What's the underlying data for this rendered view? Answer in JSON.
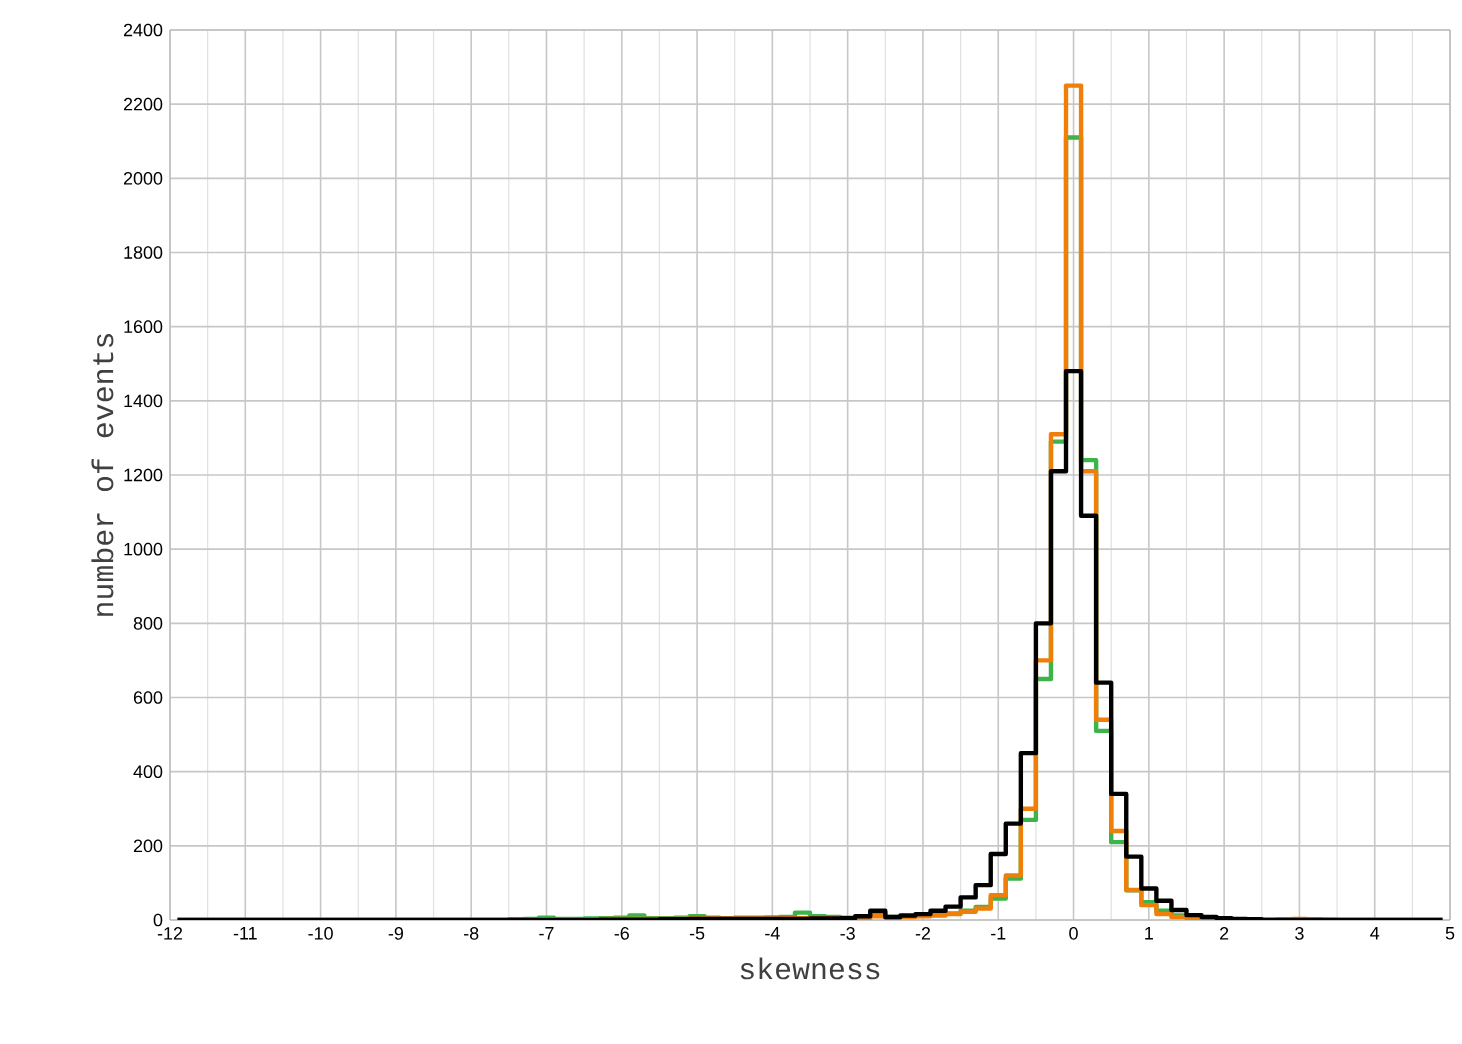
{
  "chart_data": {
    "type": "histogram",
    "xlabel": "skewness",
    "ylabel": "number of events",
    "bins": [
      -11.9,
      -11.7,
      -11.5,
      -11.3,
      -11.1,
      -10.9,
      -10.7,
      -10.5,
      -10.3,
      -10.1,
      -9.9,
      -9.7,
      -9.5,
      -9.3,
      -9.1,
      -8.9,
      -8.7,
      -8.5,
      -8.3,
      -8.1,
      -7.9,
      -7.7,
      -7.5,
      -7.3,
      -7.1,
      -6.9,
      -6.7,
      -6.5,
      -6.3,
      -6.1,
      -5.9,
      -5.7,
      -5.5,
      -5.3,
      -5.1,
      -4.9,
      -4.7,
      -4.5,
      -4.3,
      -4.1,
      -3.9,
      -3.7,
      -3.5,
      -3.3,
      -3.1,
      -2.9,
      -2.7,
      -2.5,
      -2.3,
      -2.1,
      -1.9,
      -1.7,
      -1.5,
      -1.3,
      -1.1,
      -0.9,
      -0.7,
      -0.5,
      -0.3,
      -0.1,
      0.1,
      0.3,
      0.5,
      0.7,
      0.9,
      1.1,
      1.3,
      1.5,
      1.7,
      1.9,
      2.1,
      2.3,
      2.5,
      2.7,
      2.9,
      3.1,
      3.3,
      3.5,
      3.7,
      3.9,
      4.1,
      4.3,
      4.5,
      4.7,
      4.9
    ],
    "series": [
      {
        "color": "#3cb44b",
        "values": [
          0,
          0,
          0,
          0,
          0,
          0,
          0,
          0,
          0,
          0,
          0,
          0,
          0,
          0,
          0,
          0,
          0,
          0,
          0,
          0,
          0,
          0,
          2,
          3,
          6,
          3,
          3,
          4,
          5,
          6,
          12,
          5,
          5,
          6,
          10,
          6,
          5,
          6,
          6,
          7,
          8,
          20,
          10,
          8,
          6,
          8,
          20,
          8,
          10,
          12,
          14,
          18,
          25,
          35,
          58,
          112,
          270,
          650,
          1290,
          2110,
          1240,
          510,
          210,
          80,
          48,
          25,
          12,
          6,
          4,
          2,
          1,
          0,
          0,
          0,
          0,
          0,
          0,
          0,
          0,
          0,
          0,
          0,
          0,
          0
        ]
      },
      {
        "color": "#f07f09",
        "values": [
          0,
          0,
          0,
          0,
          0,
          0,
          0,
          0,
          0,
          0,
          0,
          0,
          0,
          0,
          0,
          0,
          0,
          0,
          0,
          0,
          0,
          0,
          1,
          1,
          2,
          2,
          2,
          2,
          3,
          3,
          3,
          3,
          3,
          3,
          4,
          4,
          4,
          4,
          4,
          4,
          5,
          5,
          5,
          5,
          5,
          5,
          10,
          6,
          8,
          10,
          12,
          16,
          22,
          31,
          67,
          120,
          300,
          700,
          1310,
          2250,
          1210,
          540,
          240,
          81,
          40,
          16,
          8,
          5,
          3,
          2,
          1,
          1,
          1,
          2,
          3,
          2,
          1,
          0,
          0,
          0,
          0,
          0,
          0,
          0
        ]
      },
      {
        "color": "#000000",
        "values": [
          0,
          0,
          0,
          0,
          0,
          0,
          0,
          0,
          0,
          0,
          0,
          0,
          0,
          0,
          0,
          0,
          0,
          0,
          0,
          0,
          0,
          0,
          0,
          0,
          0,
          0,
          0,
          0,
          1,
          1,
          1,
          1,
          2,
          2,
          3,
          3,
          3,
          3,
          3,
          3,
          3,
          3,
          4,
          4,
          5,
          10,
          25,
          8,
          12,
          16,
          25,
          36,
          61,
          94,
          178,
          260,
          450,
          800,
          1210,
          1480,
          1090,
          640,
          340,
          171,
          85,
          52,
          27,
          13,
          8,
          5,
          3,
          2,
          0,
          0,
          0,
          0,
          0,
          0,
          0,
          0,
          0,
          0,
          0,
          0
        ]
      }
    ],
    "xlim": [
      -12,
      5
    ],
    "ylim": [
      0,
      2400
    ],
    "xticks": [
      -12,
      -11,
      -10,
      -9,
      -8,
      -7,
      -6,
      -5,
      -4,
      -3,
      -2,
      -1,
      0,
      1,
      2,
      3,
      4,
      5
    ],
    "yticks": [
      0,
      200,
      400,
      600,
      800,
      1000,
      1200,
      1400,
      1600,
      1800,
      2000,
      2200,
      2400
    ],
    "grid": true
  }
}
